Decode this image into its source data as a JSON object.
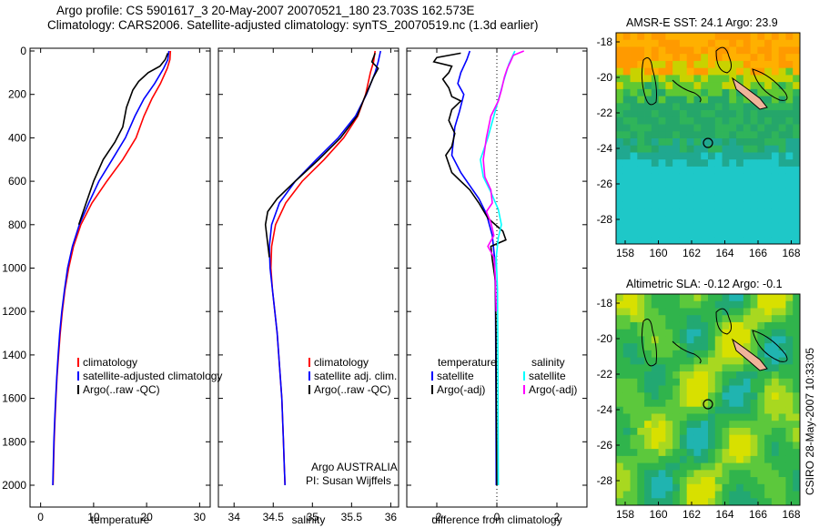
{
  "title_line1": "Argo profile: CS 5901617_3 20-May-2007 20070521_180 23.703S 162.573E",
  "title_line2": "Climatology: CARS2006. Satellite-adjusted climatology: synTS_20070519.nc (1.3d earlier)",
  "side_stamp": "CSIRO 28-May-2007 10:33:05",
  "colors": {
    "clim": "#ff0000",
    "sat": "#0000ff",
    "argo": "#000000",
    "sal_sat": "#00ffff",
    "sal_argo": "#ff00ff",
    "land": "#f0b49a"
  },
  "chart_data": [
    {
      "type": "line",
      "xlabel": "temperature",
      "ylabel": "",
      "xlim": [
        -2,
        32
      ],
      "ylim": [
        2050,
        0
      ],
      "xticks": [
        "0",
        "10",
        "20",
        "30"
      ],
      "yticks": [
        "0",
        "200",
        "400",
        "600",
        "800",
        "1000",
        "1200",
        "1400",
        "1600",
        "1800",
        "2000"
      ],
      "legend": [
        "climatology",
        "satellite-adjusted climatology",
        "Argo(..raw -QC)"
      ],
      "series": [
        {
          "name": "climatology",
          "color": "clim",
          "points": [
            [
              24.5,
              0
            ],
            [
              24.4,
              40
            ],
            [
              23.9,
              80
            ],
            [
              22.6,
              150
            ],
            [
              21.0,
              220
            ],
            [
              19.5,
              300
            ],
            [
              18.0,
              400
            ],
            [
              15.5,
              500
            ],
            [
              12.5,
              600
            ],
            [
              9.7,
              700
            ],
            [
              7.6,
              800
            ],
            [
              6.2,
              900
            ],
            [
              5.3,
              1000
            ],
            [
              4.6,
              1100
            ],
            [
              4.1,
              1200
            ],
            [
              3.7,
              1300
            ],
            [
              3.4,
              1400
            ],
            [
              3.1,
              1500
            ],
            [
              2.9,
              1600
            ],
            [
              2.7,
              1700
            ],
            [
              2.55,
              1800
            ],
            [
              2.45,
              1900
            ],
            [
              2.35,
              2000
            ]
          ]
        },
        {
          "name": "satellite-adjusted climatology",
          "color": "sat",
          "points": [
            [
              24.2,
              0
            ],
            [
              24.0,
              40
            ],
            [
              23.2,
              80
            ],
            [
              21.5,
              150
            ],
            [
              19.5,
              220
            ],
            [
              17.8,
              300
            ],
            [
              16.0,
              400
            ],
            [
              13.5,
              500
            ],
            [
              11.0,
              600
            ],
            [
              9.1,
              700
            ],
            [
              7.3,
              800
            ],
            [
              6.0,
              900
            ],
            [
              5.1,
              1000
            ],
            [
              4.5,
              1100
            ],
            [
              4.0,
              1200
            ],
            [
              3.6,
              1300
            ],
            [
              3.3,
              1400
            ],
            [
              3.05,
              1500
            ],
            [
              2.85,
              1600
            ],
            [
              2.65,
              1700
            ],
            [
              2.5,
              1800
            ],
            [
              2.4,
              1900
            ],
            [
              2.3,
              2000
            ]
          ]
        },
        {
          "name": "Argo(..raw -QC)",
          "color": "argo",
          "points": [
            [
              24.0,
              10
            ],
            [
              23.5,
              40
            ],
            [
              22.5,
              70
            ],
            [
              20.3,
              100
            ],
            [
              18.5,
              140
            ],
            [
              17.4,
              180
            ],
            [
              16.2,
              260
            ],
            [
              15.5,
              350
            ],
            [
              14.0,
              420
            ],
            [
              11.8,
              500
            ],
            [
              10.0,
              600
            ],
            [
              8.6,
              700
            ],
            [
              7.2,
              800
            ]
          ]
        }
      ]
    },
    {
      "type": "line",
      "xlabel": "salinity",
      "ylabel": "",
      "xlim": [
        33.8,
        36.1
      ],
      "ylim": [
        2050,
        0
      ],
      "xticks": [
        "34",
        "34.5",
        "35",
        "35.5",
        "36"
      ],
      "legend": [
        "climatology",
        "satellite adj. clim.",
        "Argo(..raw -QC)"
      ],
      "annot": [
        "Argo AUSTRALIA",
        "PI: Susan Wijffels"
      ],
      "series": [
        {
          "name": "climatology",
          "color": "clim",
          "points": [
            [
              35.8,
              0
            ],
            [
              35.78,
              50
            ],
            [
              35.74,
              100
            ],
            [
              35.68,
              200
            ],
            [
              35.58,
              300
            ],
            [
              35.4,
              400
            ],
            [
              35.15,
              500
            ],
            [
              34.87,
              600
            ],
            [
              34.66,
              700
            ],
            [
              34.53,
              800
            ],
            [
              34.48,
              900
            ],
            [
              34.47,
              1000
            ],
            [
              34.49,
              1100
            ],
            [
              34.52,
              1200
            ],
            [
              34.55,
              1300
            ],
            [
              34.57,
              1400
            ],
            [
              34.59,
              1500
            ],
            [
              34.61,
              1600
            ],
            [
              34.62,
              1700
            ],
            [
              34.63,
              1800
            ],
            [
              34.64,
              1900
            ],
            [
              34.65,
              2000
            ]
          ]
        },
        {
          "name": "satellite adj. clim.",
          "color": "sat",
          "points": [
            [
              35.87,
              0
            ],
            [
              35.84,
              50
            ],
            [
              35.8,
              100
            ],
            [
              35.69,
              200
            ],
            [
              35.55,
              300
            ],
            [
              35.33,
              400
            ],
            [
              35.05,
              500
            ],
            [
              34.78,
              600
            ],
            [
              34.58,
              700
            ],
            [
              34.48,
              800
            ],
            [
              34.45,
              900
            ],
            [
              34.46,
              1000
            ],
            [
              34.49,
              1100
            ],
            [
              34.52,
              1200
            ],
            [
              34.55,
              1300
            ],
            [
              34.57,
              1400
            ],
            [
              34.59,
              1500
            ],
            [
              34.61,
              1600
            ],
            [
              34.62,
              1700
            ],
            [
              34.63,
              1800
            ],
            [
              34.64,
              1900
            ],
            [
              34.65,
              2000
            ]
          ]
        },
        {
          "name": "Argo(..raw -QC)",
          "color": "argo",
          "points": [
            [
              35.8,
              10
            ],
            [
              35.76,
              50
            ],
            [
              35.84,
              80
            ],
            [
              35.78,
              120
            ],
            [
              35.72,
              170
            ],
            [
              35.66,
              220
            ],
            [
              35.57,
              300
            ],
            [
              35.36,
              400
            ],
            [
              35.08,
              500
            ],
            [
              34.78,
              600
            ],
            [
              34.55,
              680
            ],
            [
              34.43,
              740
            ],
            [
              34.4,
              800
            ],
            [
              34.42,
              860
            ],
            [
              34.45,
              950
            ]
          ]
        }
      ]
    },
    {
      "type": "line",
      "xlabel": "difference from climatology",
      "ylabel": "",
      "xlim": [
        -3,
        3
      ],
      "ylim": [
        2050,
        0
      ],
      "xticks": [
        "-2",
        "0",
        "2"
      ],
      "legend_left_title": "temperature",
      "legend_left": [
        "satellite",
        "Argo(-adj)"
      ],
      "legend_right_title": "salinity",
      "legend_right": [
        "satellite",
        "Argo(-adj)"
      ],
      "series": [
        {
          "name": "temperature satellite",
          "color": "sat",
          "points": [
            [
              -0.9,
              0
            ],
            [
              -1.0,
              40
            ],
            [
              -1.2,
              100
            ],
            [
              -1.3,
              150
            ],
            [
              -1.1,
              200
            ],
            [
              -1.25,
              280
            ],
            [
              -1.4,
              350
            ],
            [
              -1.45,
              420
            ],
            [
              -1.5,
              480
            ],
            [
              -1.2,
              560
            ],
            [
              -0.9,
              620
            ],
            [
              -0.6,
              680
            ],
            [
              -0.35,
              750
            ],
            [
              -0.15,
              850
            ],
            [
              -0.08,
              950
            ],
            [
              -0.05,
              1100
            ],
            [
              -0.04,
              1300
            ],
            [
              -0.03,
              1600
            ],
            [
              -0.02,
              2000
            ]
          ]
        },
        {
          "name": "temperature Argo(-adj)",
          "color": "argo",
          "points": [
            [
              -1.2,
              10
            ],
            [
              -2.0,
              30
            ],
            [
              -2.1,
              50
            ],
            [
              -1.5,
              70
            ],
            [
              -1.6,
              100
            ],
            [
              -1.8,
              130
            ],
            [
              -1.6,
              170
            ],
            [
              -1.5,
              210
            ],
            [
              -1.2,
              230
            ],
            [
              -1.5,
              270
            ],
            [
              -1.6,
              320
            ],
            [
              -1.4,
              380
            ],
            [
              -1.5,
              440
            ],
            [
              -1.7,
              480
            ],
            [
              -1.5,
              560
            ],
            [
              -0.9,
              640
            ],
            [
              -0.6,
              700
            ],
            [
              -0.3,
              770
            ],
            [
              0.2,
              830
            ],
            [
              0.3,
              870
            ],
            [
              -0.2,
              900
            ],
            [
              -0.15,
              960
            ],
            [
              -0.05,
              1060
            ],
            [
              -0.03,
              1300
            ],
            [
              -0.02,
              1600
            ],
            [
              0.0,
              2000
            ]
          ]
        },
        {
          "name": "salinity satellite",
          "color": "sal_sat",
          "points": [
            [
              0.6,
              0
            ],
            [
              0.4,
              60
            ],
            [
              0.2,
              150
            ],
            [
              0.0,
              250
            ],
            [
              -0.3,
              400
            ],
            [
              -0.55,
              500
            ],
            [
              -0.45,
              580
            ],
            [
              -0.2,
              650
            ],
            [
              0.05,
              730
            ],
            [
              0.15,
              800
            ],
            [
              0.05,
              860
            ],
            [
              -0.02,
              950
            ],
            [
              0.02,
              1100
            ],
            [
              0.03,
              1300
            ],
            [
              0.04,
              1600
            ],
            [
              0.05,
              2000
            ]
          ]
        },
        {
          "name": "salinity Argo(-adj)",
          "color": "sal_argo",
          "points": [
            [
              0.9,
              0
            ],
            [
              0.55,
              20
            ],
            [
              0.45,
              50
            ],
            [
              0.35,
              80
            ],
            [
              0.25,
              120
            ],
            [
              0.15,
              180
            ],
            [
              0.05,
              230
            ],
            [
              -0.2,
              300
            ],
            [
              -0.35,
              400
            ],
            [
              -0.45,
              500
            ],
            [
              -0.4,
              580
            ],
            [
              -0.2,
              640
            ],
            [
              -0.15,
              700
            ],
            [
              -0.35,
              740
            ],
            [
              -0.2,
              790
            ],
            [
              -0.1,
              850
            ],
            [
              -0.3,
              900
            ],
            [
              -0.1,
              950
            ],
            [
              -0.05,
              1050
            ],
            [
              -0.02,
              1200
            ]
          ]
        }
      ]
    }
  ],
  "maps": [
    {
      "title": "AMSR-E SST: 24.1 Argo: 23.9",
      "mode": "sst",
      "yticks": [
        "-18",
        "-20",
        "-22",
        "-24",
        "-26",
        "-28"
      ],
      "xticks": [
        "158",
        "160",
        "162",
        "164",
        "166",
        "168"
      ]
    },
    {
      "title": "Altimetric SLA: -0.12 Argo: -0.1",
      "mode": "sla",
      "yticks": [
        "-18",
        "-20",
        "-22",
        "-24",
        "-26",
        "-28"
      ],
      "xticks": [
        "158",
        "160",
        "162",
        "164",
        "166",
        "168"
      ]
    }
  ]
}
